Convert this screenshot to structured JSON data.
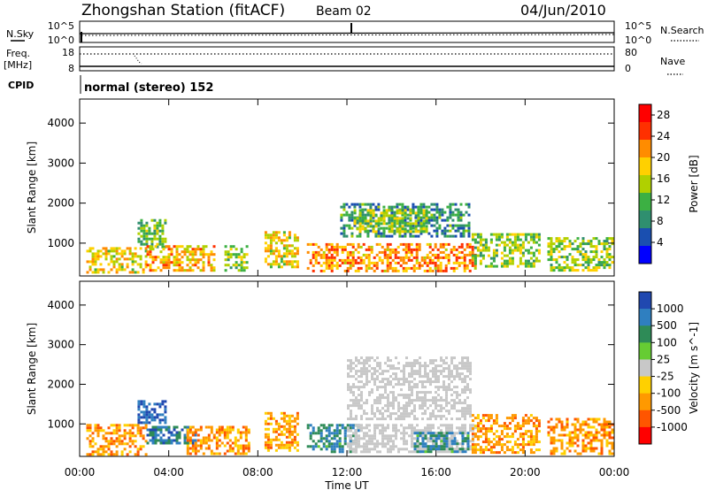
{
  "header": {
    "station": "Zhongshan Station (fitACF)",
    "beam": "Beam 02",
    "date": "04/Jun/2010"
  },
  "nsky_panel": {
    "left_label": "N.Sky",
    "left_ticks": [
      "10^5",
      "10^0"
    ],
    "right_ticks": [
      "10^5",
      "10^0"
    ],
    "right_label": "N.Search"
  },
  "freq_panel": {
    "left_label_line1": "Freq.",
    "left_label_line2": "[MHz]",
    "left_ticks": [
      "18",
      "8"
    ],
    "right_ticks": [
      "80",
      "0"
    ],
    "right_label": "Nave"
  },
  "cpid_panel": {
    "label": "CPID",
    "mode_text": "normal (stereo) 152"
  },
  "colors": {
    "power_scale": [
      "#0000ff",
      "#1a4fb0",
      "#2f8f6f",
      "#3cb043",
      "#b0d000",
      "#ffd000",
      "#ff8c00",
      "#ff3000",
      "#ff0000"
    ],
    "velocity_scale": [
      "#2048b0",
      "#2f7fc0",
      "#2e8b57",
      "#66cc33",
      "#c8c8c8",
      "#ffd000",
      "#ff9900",
      "#ff5500",
      "#ff0000"
    ],
    "ground_scatter": "#c0c0c0"
  },
  "chart_data": [
    {
      "type": "heatmap",
      "title": "",
      "xlabel": "",
      "ylabel": "Slant Range [km]",
      "x_ticks": [
        "00:00",
        "04:00",
        "08:00",
        "12:00",
        "16:00",
        "20:00",
        "00:00"
      ],
      "x_range_hours": [
        0,
        24
      ],
      "y_ticks": [
        "1000",
        "2000",
        "3000",
        "4000"
      ],
      "y_range_km": [
        180,
        4600
      ],
      "colorbar": {
        "label": "Power [dB]",
        "ticks": [
          "4",
          "8",
          "12",
          "16",
          "20",
          "24",
          "28"
        ],
        "range": [
          0,
          30
        ]
      },
      "regions": [
        {
          "t0": 0.3,
          "t1": 3.0,
          "r0": 250,
          "r1": 900,
          "level": 18
        },
        {
          "t0": 2.6,
          "t1": 3.8,
          "r0": 900,
          "r1": 1600,
          "level": 12
        },
        {
          "t0": 3.0,
          "t1": 6.0,
          "r0": 300,
          "r1": 950,
          "level": 20
        },
        {
          "t0": 6.5,
          "t1": 7.5,
          "r0": 350,
          "r1": 950,
          "level": 14
        },
        {
          "t0": 8.3,
          "t1": 9.8,
          "r0": 400,
          "r1": 1300,
          "level": 18
        },
        {
          "t0": 10.2,
          "t1": 17.8,
          "r0": 300,
          "r1": 1000,
          "level": 22
        },
        {
          "t0": 11.7,
          "t1": 17.5,
          "r0": 1150,
          "r1": 2000,
          "level": 8
        },
        {
          "t0": 12.3,
          "t1": 15.6,
          "r0": 1300,
          "r1": 1850,
          "level": 14
        },
        {
          "t0": 17.6,
          "t1": 20.6,
          "r0": 450,
          "r1": 1250,
          "level": 14
        },
        {
          "t0": 21.0,
          "t1": 23.9,
          "r0": 300,
          "r1": 1150,
          "level": 14
        }
      ]
    },
    {
      "type": "heatmap",
      "title": "",
      "xlabel": "Time UT",
      "ylabel": "Slant Range [km]",
      "x_ticks": [
        "00:00",
        "04:00",
        "08:00",
        "12:00",
        "16:00",
        "20:00",
        "00:00"
      ],
      "x_range_hours": [
        0,
        24
      ],
      "y_ticks": [
        "1000",
        "2000",
        "3000",
        "4000"
      ],
      "y_range_km": [
        180,
        4600
      ],
      "colorbar": {
        "label": "Velocity [m s^-1]",
        "ticks": [
          "1000",
          "500",
          "100",
          "25",
          "-25",
          "-100",
          "-500",
          "-1000"
        ]
      },
      "regions": [
        {
          "t0": 0.3,
          "t1": 3.0,
          "r0": 250,
          "r1": 1000,
          "vel": -200
        },
        {
          "t0": 2.6,
          "t1": 3.8,
          "r0": 1000,
          "r1": 1600,
          "vel": 300
        },
        {
          "t0": 3.0,
          "t1": 5.2,
          "r0": 500,
          "r1": 950,
          "vel": 150
        },
        {
          "t0": 4.8,
          "t1": 7.6,
          "r0": 250,
          "r1": 950,
          "vel": -200
        },
        {
          "t0": 8.3,
          "t1": 9.8,
          "r0": 300,
          "r1": 1300,
          "vel": -150
        },
        {
          "t0": 10.2,
          "t1": 12.5,
          "r0": 300,
          "r1": 1000,
          "vel": 80
        },
        {
          "t0": 12.0,
          "t1": 17.8,
          "r0": 300,
          "r1": 1000,
          "vel": 0
        },
        {
          "t0": 12.0,
          "t1": 17.5,
          "r0": 1150,
          "r1": 2700,
          "vel": 0
        },
        {
          "t0": 15.0,
          "t1": 17.5,
          "r0": 300,
          "r1": 800,
          "vel": 80
        },
        {
          "t0": 17.6,
          "t1": 20.6,
          "r0": 300,
          "r1": 1250,
          "vel": -200
        },
        {
          "t0": 21.0,
          "t1": 23.9,
          "r0": 250,
          "r1": 1150,
          "vel": -200
        }
      ]
    }
  ]
}
